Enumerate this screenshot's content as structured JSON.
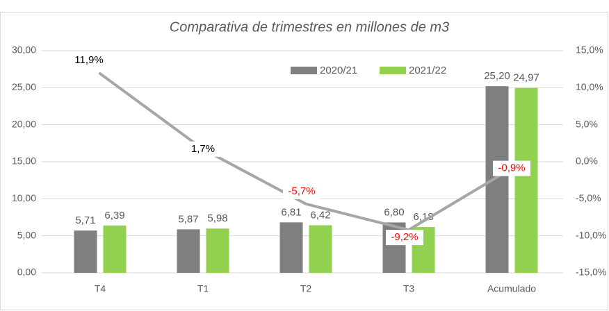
{
  "chart_data": {
    "type": "bar",
    "title": "Comparativa de trimestres en millones de m3",
    "categories": [
      "T4",
      "T1",
      "T2",
      "T3",
      "Acumulado"
    ],
    "series": [
      {
        "name": "2020/21",
        "color": "#7f7f7f",
        "values": [
          5.71,
          5.87,
          6.81,
          6.8,
          25.2
        ],
        "value_labels": [
          "5,71",
          "5,87",
          "6,81",
          "6,80",
          "25,20"
        ]
      },
      {
        "name": "2021/22",
        "color": "#92d050",
        "values": [
          6.39,
          5.98,
          6.42,
          6.18,
          24.97
        ],
        "value_labels": [
          "6,39",
          "5,98",
          "6,42",
          "6,18",
          "24,97"
        ]
      }
    ],
    "line": {
      "type": "line",
      "axis": "y2",
      "color": "#a6a6a6",
      "values": [
        11.9,
        1.7,
        -5.7,
        -9.2,
        -0.9
      ],
      "value_labels": [
        "11,9%",
        "1,7%",
        "-5,7%",
        "-9,2%",
        "-0,9%"
      ]
    },
    "ylim": [
      0,
      30
    ],
    "yticks": [
      {
        "value": 0,
        "label": "0,00"
      },
      {
        "value": 5,
        "label": "5,00"
      },
      {
        "value": 10,
        "label": "10,00"
      },
      {
        "value": 15,
        "label": "15,00"
      },
      {
        "value": 20,
        "label": "20,00"
      },
      {
        "value": 25,
        "label": "25,00"
      },
      {
        "value": 30,
        "label": "30,00"
      }
    ],
    "y2lim": [
      -15,
      15
    ],
    "y2ticks": [
      {
        "value": -15,
        "label": "-15,0%"
      },
      {
        "value": -10,
        "label": "-10,0%"
      },
      {
        "value": -5,
        "label": "-5,0%"
      },
      {
        "value": 0,
        "label": "0,0%"
      },
      {
        "value": 5,
        "label": "5,0%"
      },
      {
        "value": 10,
        "label": "10,0%"
      },
      {
        "value": 15,
        "label": "15,0%"
      }
    ],
    "grid": true,
    "legend": "top"
  }
}
